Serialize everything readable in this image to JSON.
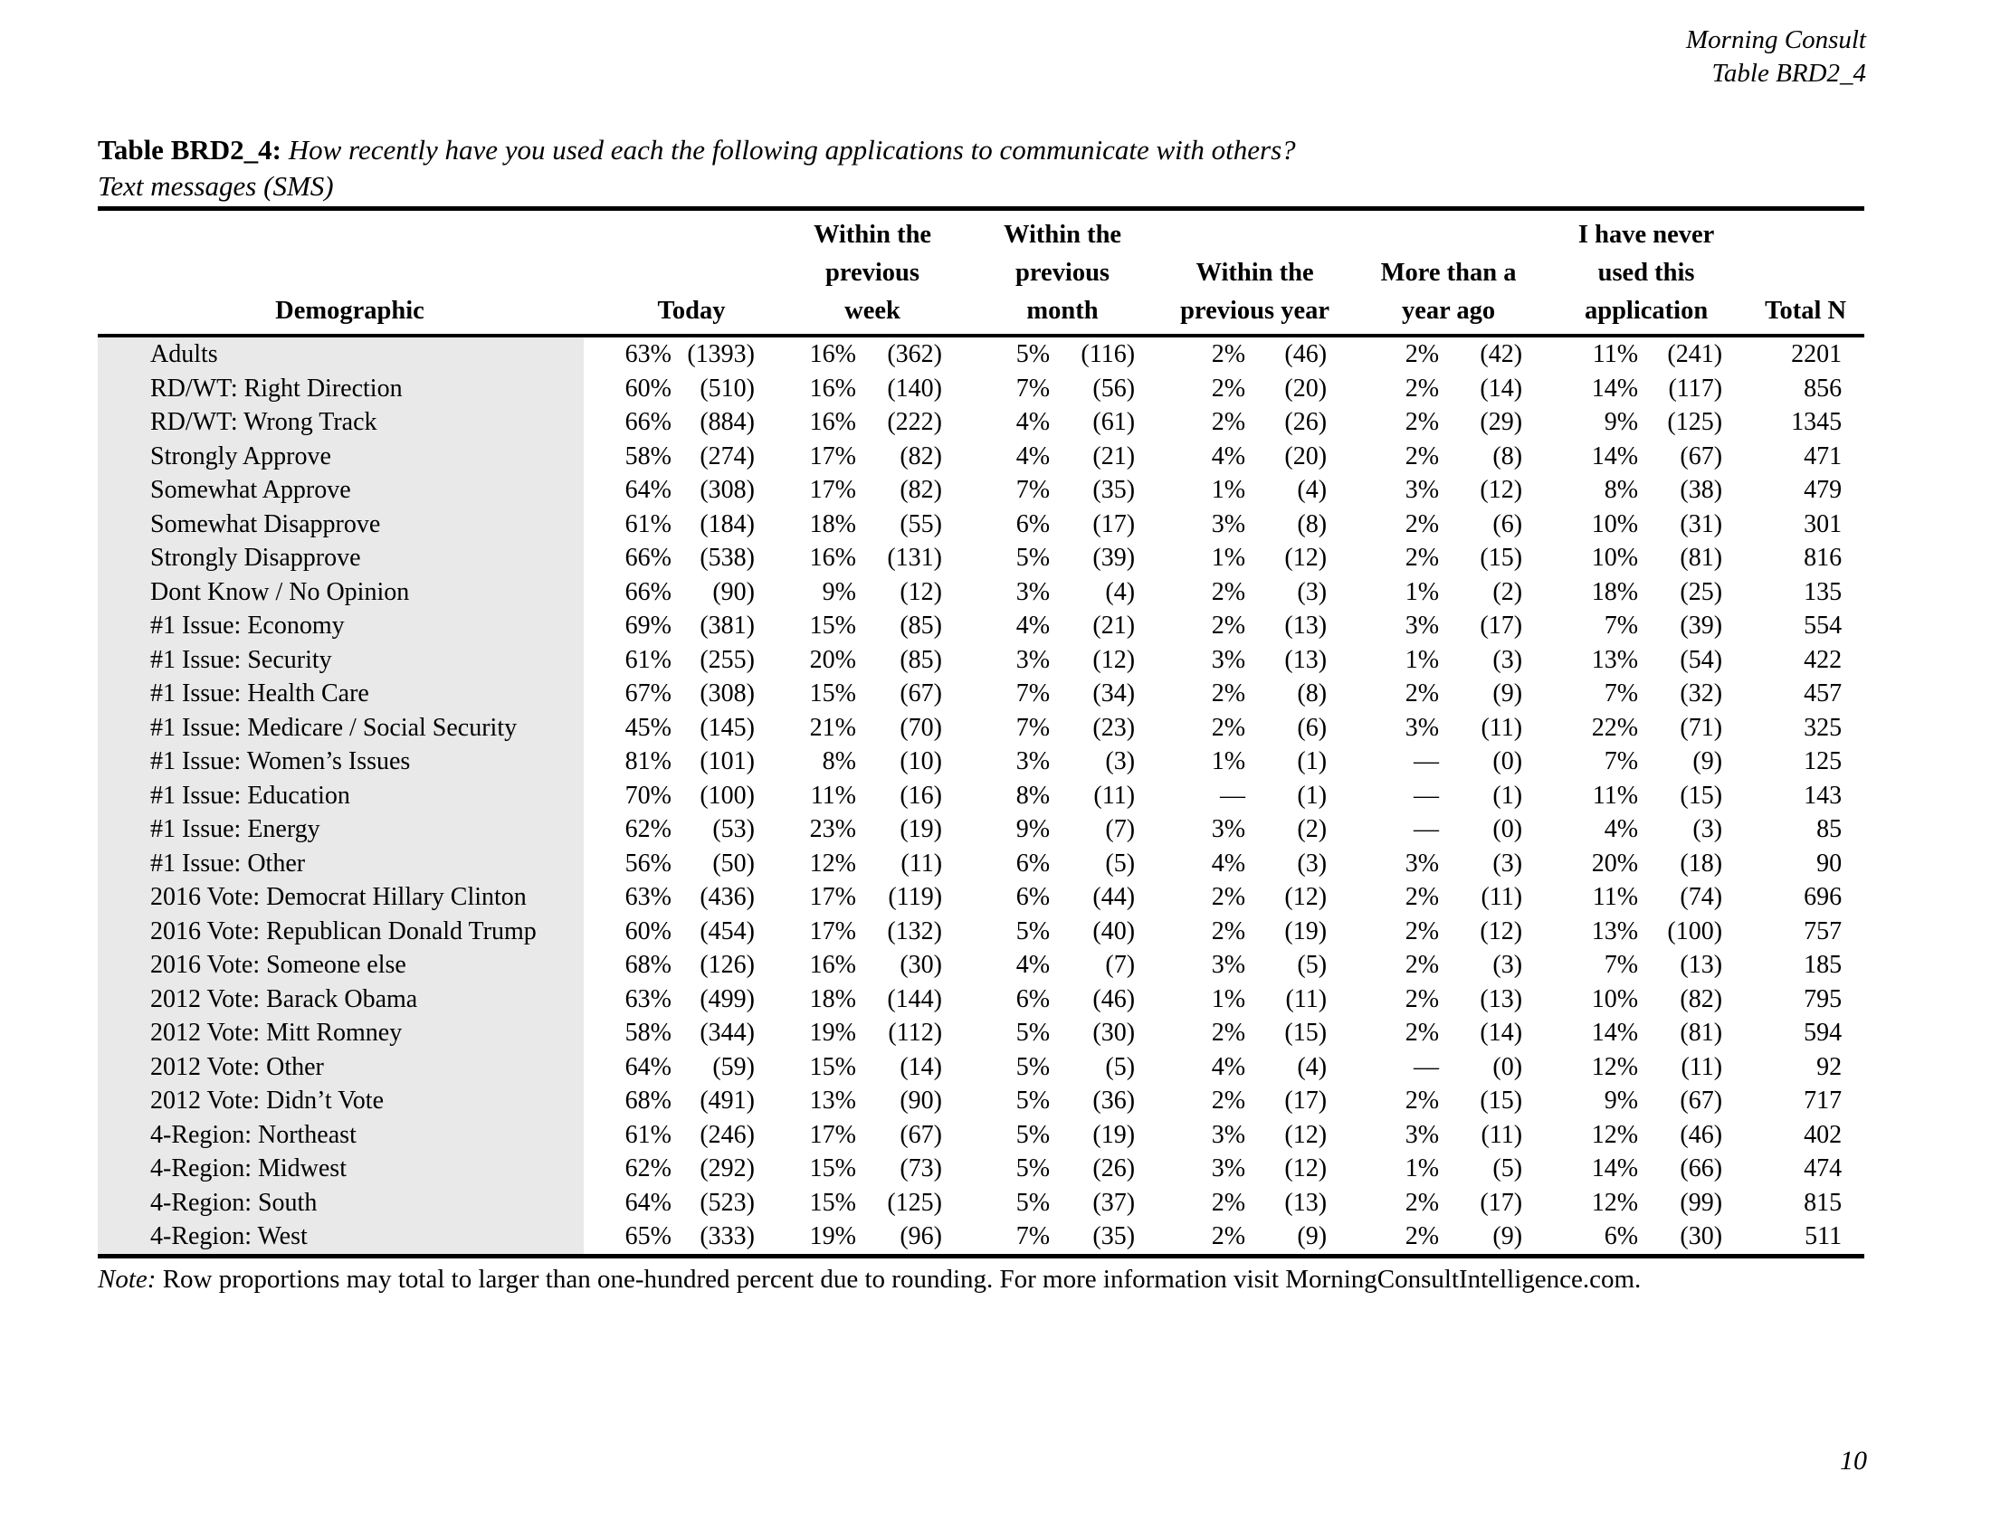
{
  "page": {
    "source": "Morning Consult",
    "table_ref": "Table BRD2_4",
    "page_number": "10"
  },
  "title": {
    "label": "Table BRD2_4:",
    "question": "How recently have you used each the following applications to communicate with others?",
    "subtitle": "Text messages (SMS)"
  },
  "note": {
    "label": "Note:",
    "text": "Row proportions may total to larger than one-hundred percent due to rounding. For more information visit MorningConsultIntelligence.com."
  },
  "colors": {
    "row_label_bg": "#e9e9e9",
    "text": "#000000"
  },
  "table": {
    "headers": {
      "demographic": [
        "Demographic"
      ],
      "today": [
        "Today"
      ],
      "week": [
        "Within the",
        "previous",
        "week"
      ],
      "month": [
        "Within the",
        "previous",
        "month"
      ],
      "year": [
        "Within the",
        "previous year"
      ],
      "more": [
        "More than a",
        "year ago"
      ],
      "never": [
        "I have never",
        "used this",
        "application"
      ],
      "total": [
        "Total N"
      ]
    },
    "rows": [
      {
        "label": "Adults",
        "values": [
          "63%",
          "(1393)",
          "16%",
          "(362)",
          "5%",
          "(116)",
          "2%",
          "(46)",
          "2%",
          "(42)",
          "11%",
          "(241)",
          "2201"
        ]
      },
      {
        "label": "RD/WT: Right Direction",
        "values": [
          "60%",
          "(510)",
          "16%",
          "(140)",
          "7%",
          "(56)",
          "2%",
          "(20)",
          "2%",
          "(14)",
          "14%",
          "(117)",
          "856"
        ]
      },
      {
        "label": "RD/WT: Wrong Track",
        "values": [
          "66%",
          "(884)",
          "16%",
          "(222)",
          "4%",
          "(61)",
          "2%",
          "(26)",
          "2%",
          "(29)",
          "9%",
          "(125)",
          "1345"
        ]
      },
      {
        "label": "Strongly Approve",
        "values": [
          "58%",
          "(274)",
          "17%",
          "(82)",
          "4%",
          "(21)",
          "4%",
          "(20)",
          "2%",
          "(8)",
          "14%",
          "(67)",
          "471"
        ]
      },
      {
        "label": "Somewhat Approve",
        "values": [
          "64%",
          "(308)",
          "17%",
          "(82)",
          "7%",
          "(35)",
          "1%",
          "(4)",
          "3%",
          "(12)",
          "8%",
          "(38)",
          "479"
        ]
      },
      {
        "label": "Somewhat Disapprove",
        "values": [
          "61%",
          "(184)",
          "18%",
          "(55)",
          "6%",
          "(17)",
          "3%",
          "(8)",
          "2%",
          "(6)",
          "10%",
          "(31)",
          "301"
        ]
      },
      {
        "label": "Strongly Disapprove",
        "values": [
          "66%",
          "(538)",
          "16%",
          "(131)",
          "5%",
          "(39)",
          "1%",
          "(12)",
          "2%",
          "(15)",
          "10%",
          "(81)",
          "816"
        ]
      },
      {
        "label": "Dont Know / No Opinion",
        "values": [
          "66%",
          "(90)",
          "9%",
          "(12)",
          "3%",
          "(4)",
          "2%",
          "(3)",
          "1%",
          "(2)",
          "18%",
          "(25)",
          "135"
        ]
      },
      {
        "label": "#1 Issue: Economy",
        "values": [
          "69%",
          "(381)",
          "15%",
          "(85)",
          "4%",
          "(21)",
          "2%",
          "(13)",
          "3%",
          "(17)",
          "7%",
          "(39)",
          "554"
        ]
      },
      {
        "label": "#1 Issue: Security",
        "values": [
          "61%",
          "(255)",
          "20%",
          "(85)",
          "3%",
          "(12)",
          "3%",
          "(13)",
          "1%",
          "(3)",
          "13%",
          "(54)",
          "422"
        ]
      },
      {
        "label": "#1 Issue: Health Care",
        "values": [
          "67%",
          "(308)",
          "15%",
          "(67)",
          "7%",
          "(34)",
          "2%",
          "(8)",
          "2%",
          "(9)",
          "7%",
          "(32)",
          "457"
        ]
      },
      {
        "label": "#1 Issue: Medicare / Social Security",
        "values": [
          "45%",
          "(145)",
          "21%",
          "(70)",
          "7%",
          "(23)",
          "2%",
          "(6)",
          "3%",
          "(11)",
          "22%",
          "(71)",
          "325"
        ]
      },
      {
        "label": "#1 Issue: Women’s Issues",
        "values": [
          "81%",
          "(101)",
          "8%",
          "(10)",
          "3%",
          "(3)",
          "1%",
          "(1)",
          "—",
          "(0)",
          "7%",
          "(9)",
          "125"
        ]
      },
      {
        "label": "#1 Issue: Education",
        "values": [
          "70%",
          "(100)",
          "11%",
          "(16)",
          "8%",
          "(11)",
          "—",
          "(1)",
          "—",
          "(1)",
          "11%",
          "(15)",
          "143"
        ]
      },
      {
        "label": "#1 Issue: Energy",
        "values": [
          "62%",
          "(53)",
          "23%",
          "(19)",
          "9%",
          "(7)",
          "3%",
          "(2)",
          "—",
          "(0)",
          "4%",
          "(3)",
          "85"
        ]
      },
      {
        "label": "#1 Issue: Other",
        "values": [
          "56%",
          "(50)",
          "12%",
          "(11)",
          "6%",
          "(5)",
          "4%",
          "(3)",
          "3%",
          "(3)",
          "20%",
          "(18)",
          "90"
        ]
      },
      {
        "label": "2016 Vote: Democrat Hillary Clinton",
        "values": [
          "63%",
          "(436)",
          "17%",
          "(119)",
          "6%",
          "(44)",
          "2%",
          "(12)",
          "2%",
          "(11)",
          "11%",
          "(74)",
          "696"
        ]
      },
      {
        "label": "2016 Vote: Republican Donald Trump",
        "values": [
          "60%",
          "(454)",
          "17%",
          "(132)",
          "5%",
          "(40)",
          "2%",
          "(19)",
          "2%",
          "(12)",
          "13%",
          "(100)",
          "757"
        ]
      },
      {
        "label": "2016 Vote: Someone else",
        "values": [
          "68%",
          "(126)",
          "16%",
          "(30)",
          "4%",
          "(7)",
          "3%",
          "(5)",
          "2%",
          "(3)",
          "7%",
          "(13)",
          "185"
        ]
      },
      {
        "label": "2012 Vote: Barack Obama",
        "values": [
          "63%",
          "(499)",
          "18%",
          "(144)",
          "6%",
          "(46)",
          "1%",
          "(11)",
          "2%",
          "(13)",
          "10%",
          "(82)",
          "795"
        ]
      },
      {
        "label": "2012 Vote: Mitt Romney",
        "values": [
          "58%",
          "(344)",
          "19%",
          "(112)",
          "5%",
          "(30)",
          "2%",
          "(15)",
          "2%",
          "(14)",
          "14%",
          "(81)",
          "594"
        ]
      },
      {
        "label": "2012 Vote: Other",
        "values": [
          "64%",
          "(59)",
          "15%",
          "(14)",
          "5%",
          "(5)",
          "4%",
          "(4)",
          "—",
          "(0)",
          "12%",
          "(11)",
          "92"
        ]
      },
      {
        "label": "2012 Vote: Didn’t Vote",
        "values": [
          "68%",
          "(491)",
          "13%",
          "(90)",
          "5%",
          "(36)",
          "2%",
          "(17)",
          "2%",
          "(15)",
          "9%",
          "(67)",
          "717"
        ]
      },
      {
        "label": "4-Region: Northeast",
        "values": [
          "61%",
          "(246)",
          "17%",
          "(67)",
          "5%",
          "(19)",
          "3%",
          "(12)",
          "3%",
          "(11)",
          "12%",
          "(46)",
          "402"
        ]
      },
      {
        "label": "4-Region: Midwest",
        "values": [
          "62%",
          "(292)",
          "15%",
          "(73)",
          "5%",
          "(26)",
          "3%",
          "(12)",
          "1%",
          "(5)",
          "14%",
          "(66)",
          "474"
        ]
      },
      {
        "label": "4-Region: South",
        "values": [
          "64%",
          "(523)",
          "15%",
          "(125)",
          "5%",
          "(37)",
          "2%",
          "(13)",
          "2%",
          "(17)",
          "12%",
          "(99)",
          "815"
        ]
      },
      {
        "label": "4-Region: West",
        "values": [
          "65%",
          "(333)",
          "19%",
          "(96)",
          "7%",
          "(35)",
          "2%",
          "(9)",
          "2%",
          "(9)",
          "6%",
          "(30)",
          "511"
        ]
      }
    ]
  }
}
